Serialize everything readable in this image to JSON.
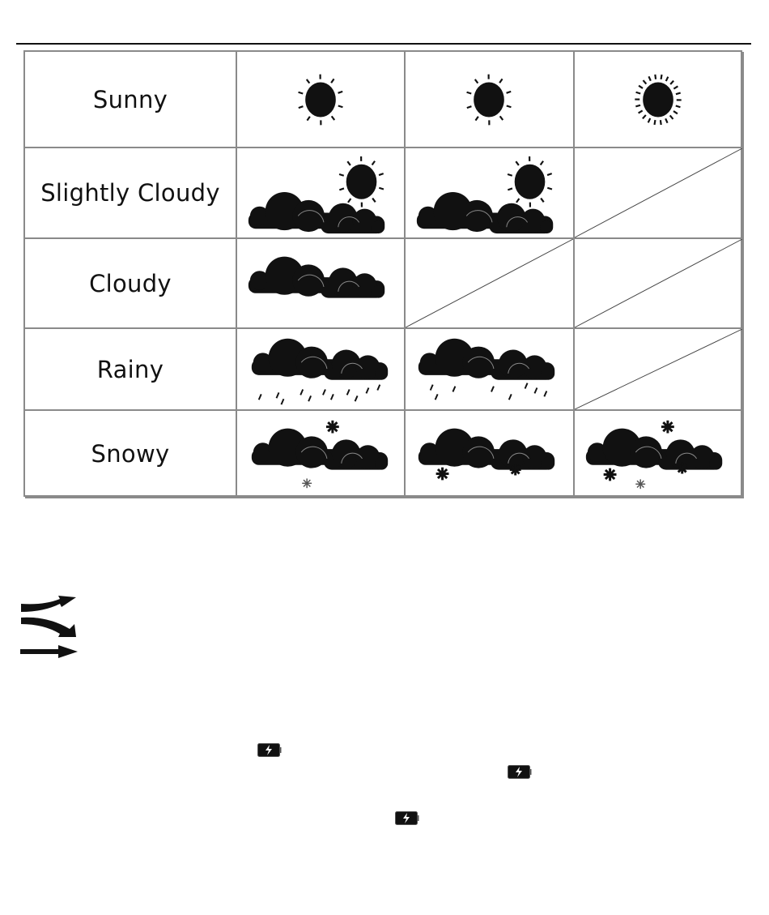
{
  "table": {
    "rows": [
      {
        "label": "Sunny",
        "cells": [
          "sun",
          "sun",
          "sun-many-rays"
        ]
      },
      {
        "label": "Slightly Cloudy",
        "cells": [
          "sun-cloud",
          "sun-cloud",
          "empty"
        ]
      },
      {
        "label": "Cloudy",
        "cells": [
          "cloud",
          "empty",
          "empty"
        ]
      },
      {
        "label": "Rainy",
        "cells": [
          "cloud-rain-heavy",
          "cloud-rain-light",
          "empty"
        ]
      },
      {
        "label": "Snowy",
        "cells": [
          "cloud-snow-1",
          "cloud-snow-2",
          "cloud-snow-3"
        ]
      }
    ]
  },
  "trend_icons": [
    "trend-rising-arrow-icon",
    "trend-falling-arrow-icon",
    "trend-steady-arrow-icon"
  ],
  "battery_icons": [
    "battery-charging-icon",
    "battery-charging-icon",
    "battery-charging-icon"
  ]
}
